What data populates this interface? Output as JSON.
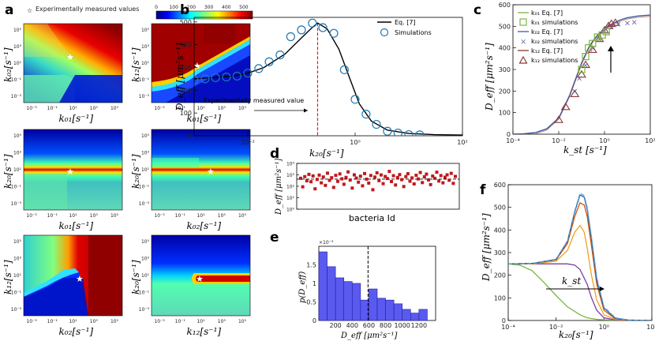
{
  "panel_labels": {
    "a": "a",
    "b": "b",
    "c": "c",
    "d": "d",
    "e": "e",
    "f": "f"
  },
  "colors": {
    "jet_low": "#00007f",
    "jet_high": "#7f0000",
    "sim_blue": "#1f77b4",
    "green": "#5aae3a",
    "purple": "#6a2d9c",
    "red": "#c0392b"
  },
  "chart_data": [
    {
      "id": "a",
      "type": "heatmap",
      "legend_star": "Experimentally measured values",
      "colorbar": {
        "ticks": [
          "0",
          "100",
          "200",
          "300",
          "400",
          "500"
        ],
        "range": [
          0,
          550
        ]
      },
      "subplots": [
        {
          "xlabel": "k₀₁[s⁻¹]",
          "ylabel": "k₀₂[s⁻¹]",
          "xticks": [
            "10⁻³",
            "10⁻¹",
            "10¹",
            "10³",
            "10⁵"
          ],
          "yticks": [
            "10⁵",
            "10³",
            "10¹",
            "10⁻¹",
            "10⁻³"
          ]
        },
        {
          "xlabel": "k₀₁[s⁻¹]",
          "ylabel": "k₁₂[s⁻¹]",
          "xticks": [
            "10⁻³",
            "10⁻¹",
            "10¹",
            "10³",
            "10⁵"
          ],
          "yticks": [
            "10⁵",
            "10³",
            "10¹",
            "10⁻¹",
            "10⁻³"
          ]
        },
        {
          "xlabel": "k₀₁[s⁻¹]",
          "ylabel": "k₂₀[s⁻¹]",
          "xticks": [
            "10⁻³",
            "10⁻¹",
            "10¹",
            "10³",
            "10⁵"
          ],
          "yticks": [
            "10⁵",
            "10³",
            "10¹",
            "10⁻¹",
            "10⁻³"
          ]
        },
        {
          "xlabel": "k₀₂[s⁻¹]",
          "ylabel": "k₂₀[s⁻¹]",
          "xticks": [
            "10⁻³",
            "10⁻¹",
            "10¹",
            "10³",
            "10⁵"
          ],
          "yticks": [
            "10⁵",
            "10³",
            "10¹",
            "10⁻¹",
            "10⁻³"
          ]
        },
        {
          "xlabel": "k₀₂[s⁻¹]",
          "ylabel": "k₁₂[s⁻¹]",
          "xticks": [
            "10⁻³",
            "10⁻¹",
            "10¹",
            "10³",
            "10⁵"
          ],
          "yticks": [
            "10⁵",
            "10³",
            "10¹",
            "10⁻¹",
            "10⁻³"
          ]
        },
        {
          "xlabel": "k₁₂[s⁻¹]",
          "ylabel": "k₂₀[s⁻¹]",
          "xticks": [
            "10⁻³",
            "10⁻¹",
            "10¹",
            "10³",
            "10⁵"
          ],
          "yticks": [
            "10⁵",
            "10³",
            "10¹",
            "10⁻¹",
            "10⁻³"
          ]
        }
      ]
    },
    {
      "id": "b",
      "type": "line",
      "xlabel": "k₂₀[s⁻¹]",
      "ylabel": "D_eff [μm²s⁻¹]",
      "xscale": "log",
      "xlim": [
        0.001,
        100
      ],
      "ylim": [
        0,
        520
      ],
      "xticks": [
        {
          "v": 0.01,
          "t": "10⁻²"
        },
        {
          "v": 1,
          "t": "10⁰"
        },
        {
          "v": 100,
          "t": "10²"
        }
      ],
      "yticks": [
        0,
        100,
        200,
        300,
        400,
        500
      ],
      "legend": [
        "Eq. [7]",
        "Simulations"
      ],
      "annotation": "Experimentally measured value",
      "annotation_line2": "",
      "measured_x": 0.2,
      "curve_x": [
        0.001,
        0.002,
        0.005,
        0.01,
        0.02,
        0.05,
        0.1,
        0.15,
        0.2,
        0.3,
        0.5,
        0.8,
        1.2,
        2,
        4,
        10,
        30,
        100
      ],
      "curve_y": [
        250,
        255,
        262,
        275,
        300,
        360,
        430,
        470,
        495,
        470,
        380,
        250,
        140,
        65,
        25,
        10,
        5,
        3
      ],
      "sim_x": [
        0.001,
        0.0016,
        0.0025,
        0.004,
        0.0063,
        0.01,
        0.016,
        0.025,
        0.04,
        0.063,
        0.1,
        0.16,
        0.25,
        0.4,
        0.63,
        1.0,
        1.6,
        2.5,
        4,
        6.3,
        10,
        16
      ],
      "sim_y": [
        245,
        250,
        255,
        258,
        262,
        275,
        295,
        325,
        355,
        435,
        465,
        495,
        475,
        450,
        290,
        160,
        95,
        50,
        20,
        12,
        5,
        4
      ]
    },
    {
      "id": "c",
      "type": "scatter",
      "xlabel": "k_st [s⁻¹]",
      "ylabel": "D_eff [μm²s⁻¹]",
      "xscale": "log",
      "xlim": [
        0.0001,
        100
      ],
      "ylim": [
        0,
        600
      ],
      "xticks": [
        {
          "v": 0.0001,
          "t": "10⁻⁴"
        },
        {
          "v": 0.01,
          "t": "10⁻²"
        },
        {
          "v": 1,
          "t": "10⁰"
        },
        {
          "v": 100,
          "t": "10²"
        }
      ],
      "yticks": [
        0,
        100,
        200,
        300,
        400,
        500,
        600
      ],
      "legend": [
        "k₀₁ Eq. [7]",
        "k₀₁ simulations",
        "k₀₂ Eq. [7]",
        "k₀₂ simulations",
        "k₁₂ Eq. [7]",
        "k₁₂ simulations"
      ],
      "curve_x": [
        0.0001,
        0.0003,
        0.001,
        0.003,
        0.01,
        0.03,
        0.05,
        0.1,
        0.2,
        0.3,
        0.5,
        1,
        2,
        5,
        10,
        30,
        100
      ],
      "curve_y": [
        0,
        2,
        8,
        25,
        75,
        180,
        245,
        330,
        400,
        430,
        460,
        490,
        510,
        530,
        540,
        548,
        552
      ],
      "k01_x": [
        0.1,
        0.15,
        0.2,
        0.3,
        0.5,
        0.8,
        1.2
      ],
      "k01_y": [
        300,
        360,
        400,
        420,
        450,
        460,
        475
      ],
      "k02_x": [
        0.05,
        0.08,
        0.15,
        0.3,
        0.6,
        1,
        2,
        4,
        10,
        20
      ],
      "k02_y": [
        200,
        260,
        320,
        400,
        440,
        480,
        500,
        510,
        515,
        520
      ],
      "k12_x": [
        0.01,
        0.02,
        0.05,
        0.1,
        0.15,
        0.3,
        0.6,
        1,
        1.5,
        2,
        3
      ],
      "k12_y": [
        65,
        125,
        185,
        275,
        320,
        390,
        440,
        480,
        500,
        510,
        515
      ]
    },
    {
      "id": "d",
      "type": "scatter",
      "xlabel": "bacteria Id",
      "ylabel": "D_eff [μm²s⁻¹]",
      "yscale": "log",
      "ylim": [
        1,
        10000
      ],
      "yticks": [
        {
          "v": 1,
          "t": "10⁰"
        },
        {
          "v": 10,
          "t": "10¹"
        },
        {
          "v": 100,
          "t": "10²"
        },
        {
          "v": 1000,
          "t": "10³"
        },
        {
          "v": 10000,
          "t": "10⁴"
        }
      ],
      "mean": 420,
      "values": [
        500,
        90,
        700,
        300,
        1100,
        250,
        800,
        60,
        400,
        950,
        200,
        650,
        120,
        1400,
        330,
        560,
        80,
        900,
        270,
        1200,
        450,
        150,
        600,
        1800,
        350,
        70,
        1000,
        520,
        230,
        760,
        110,
        1300,
        420,
        190,
        880,
        50,
        640,
        1500,
        310,
        980,
        170,
        720,
        480,
        2000,
        260,
        840,
        130,
        590,
        1050,
        380,
        95,
        700,
        1250,
        280,
        540,
        160,
        920,
        440,
        1600,
        210,
        670,
        1150,
        360,
        140,
        780,
        500,
        1700,
        290,
        860,
        200,
        620,
        1000,
        340,
        1350,
        180,
        730
      ]
    },
    {
      "id": "e",
      "type": "bar",
      "xlabel": "D_eff [μm²s⁻¹]",
      "ylabel": "p(D_eff)",
      "scale_note": "×10⁻³",
      "xlim": [
        0,
        1400
      ],
      "ylim": [
        0,
        2.0
      ],
      "xticks": [
        200,
        400,
        600,
        800,
        1000,
        1200
      ],
      "yticks": [
        0,
        0.5,
        1,
        1.5
      ],
      "bin_width": 100,
      "bin_left": [
        0,
        100,
        200,
        300,
        400,
        500,
        600,
        700,
        800,
        900,
        1000,
        1100,
        1200
      ],
      "values": [
        1.85,
        1.45,
        1.15,
        1.05,
        1.0,
        0.55,
        0.85,
        0.6,
        0.55,
        0.45,
        0.3,
        0.2,
        0.3
      ],
      "mean": 590
    },
    {
      "id": "f",
      "type": "line",
      "xlabel": "k₂₀[s⁻¹]",
      "ylabel": "D_eff [μm²s⁻¹]",
      "xscale": "log",
      "xlim": [
        0.0001,
        100
      ],
      "ylim": [
        0,
        600
      ],
      "xticks": [
        {
          "v": 0.0001,
          "t": "10⁻⁴"
        },
        {
          "v": 0.01,
          "t": "10⁻²"
        },
        {
          "v": 1,
          "t": "10⁰"
        },
        {
          "v": 100,
          "t": "10²"
        }
      ],
      "yticks": [
        0,
        100,
        200,
        300,
        400,
        500,
        600
      ],
      "annotation": "k_st",
      "series": [
        {
          "color": "#7cb342",
          "x": [
            0.0001,
            0.0003,
            0.001,
            0.003,
            0.01,
            0.03,
            0.1,
            0.2,
            0.5,
            1,
            3,
            10,
            100
          ],
          "y": [
            250,
            245,
            220,
            170,
            110,
            60,
            25,
            12,
            5,
            3,
            2,
            1,
            0
          ]
        },
        {
          "color": "#7b3fa0",
          "x": [
            0.0001,
            0.001,
            0.01,
            0.03,
            0.06,
            0.1,
            0.2,
            0.3,
            0.5,
            1,
            3,
            10,
            100
          ],
          "y": [
            250,
            250,
            250,
            250,
            245,
            225,
            160,
            100,
            45,
            12,
            3,
            1,
            0
          ]
        },
        {
          "color": "#f0a020",
          "x": [
            0.0001,
            0.001,
            0.01,
            0.03,
            0.06,
            0.1,
            0.15,
            0.2,
            0.3,
            0.5,
            1,
            3,
            10,
            100
          ],
          "y": [
            250,
            250,
            262,
            310,
            390,
            420,
            390,
            320,
            200,
            90,
            25,
            5,
            1,
            0
          ]
        },
        {
          "color": "#d35400",
          "x": [
            0.0001,
            0.001,
            0.01,
            0.03,
            0.06,
            0.1,
            0.15,
            0.2,
            0.3,
            0.5,
            1,
            3,
            10,
            100
          ],
          "y": [
            250,
            252,
            268,
            340,
            460,
            520,
            510,
            460,
            330,
            160,
            45,
            8,
            1,
            0
          ]
        },
        {
          "color": "#1f5fa8",
          "x": [
            0.0001,
            0.001,
            0.01,
            0.03,
            0.06,
            0.1,
            0.15,
            0.2,
            0.3,
            0.5,
            1,
            3,
            10,
            100
          ],
          "y": [
            250,
            252,
            270,
            350,
            480,
            555,
            545,
            490,
            360,
            180,
            55,
            10,
            2,
            0
          ]
        },
        {
          "color": "#5a9fd4",
          "dashed": true,
          "x": [
            0.0001,
            0.001,
            0.01,
            0.03,
            0.06,
            0.1,
            0.15,
            0.2,
            0.3,
            0.5,
            1,
            3,
            10,
            100
          ],
          "y": [
            250,
            252,
            271,
            352,
            485,
            562,
            552,
            500,
            370,
            190,
            60,
            12,
            2,
            0
          ]
        }
      ]
    }
  ]
}
